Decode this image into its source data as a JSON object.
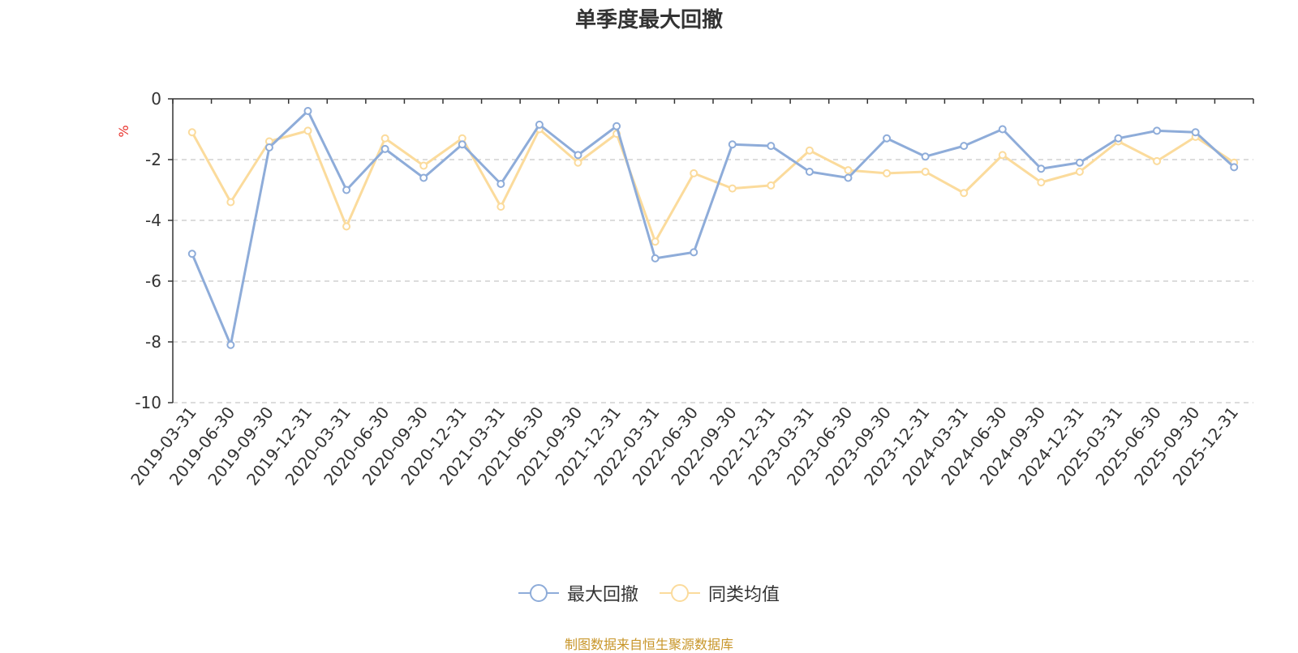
{
  "chart_data": {
    "type": "line",
    "title": "单季度最大回撤",
    "ylabel": "%",
    "xlabel": "",
    "ylim": [
      -10,
      0
    ],
    "yticks": [
      0,
      -2,
      -4,
      -6,
      -8,
      -10
    ],
    "grid": true,
    "legend_position": "bottom",
    "categories": [
      "2019-03-31",
      "2019-06-30",
      "2019-09-30",
      "2019-12-31",
      "2020-03-31",
      "2020-06-30",
      "2020-09-30",
      "2020-12-31",
      "2021-03-31",
      "2021-06-30",
      "2021-09-30",
      "2021-12-31",
      "2022-03-31",
      "2022-06-30",
      "2022-09-30",
      "2022-12-31",
      "2023-03-31",
      "2023-06-30",
      "2023-09-30",
      "2023-12-31",
      "2024-03-31",
      "2024-06-30",
      "2024-09-30",
      "2024-12-31",
      "2025-03-31",
      "2025-06-30",
      "2025-09-30",
      "2025-12-31"
    ],
    "series": [
      {
        "name": "最大回撤",
        "color": "#8eacd9",
        "values": [
          -5.1,
          -8.1,
          -1.6,
          -0.4,
          -3.0,
          -1.65,
          -2.6,
          -1.5,
          -2.8,
          -0.85,
          -1.85,
          -0.9,
          -5.25,
          -5.05,
          -1.5,
          -1.55,
          -2.4,
          -2.6,
          -1.3,
          -1.9,
          -1.55,
          -1.0,
          -2.3,
          -2.1,
          -1.3,
          -1.05,
          -1.1,
          -2.25
        ]
      },
      {
        "name": "同类均值",
        "color": "#fbdb9c",
        "values": [
          -1.1,
          -3.4,
          -1.4,
          -1.05,
          -4.2,
          -1.3,
          -2.2,
          -1.3,
          -3.55,
          -1.0,
          -2.1,
          -1.15,
          -4.7,
          -2.45,
          -2.95,
          -2.85,
          -1.7,
          -2.35,
          -2.45,
          -2.4,
          -3.1,
          -1.85,
          -2.75,
          -2.4,
          -1.4,
          -2.05,
          -1.25,
          -2.1
        ]
      }
    ]
  },
  "source_note": "制图数据来自恒生聚源数据库"
}
